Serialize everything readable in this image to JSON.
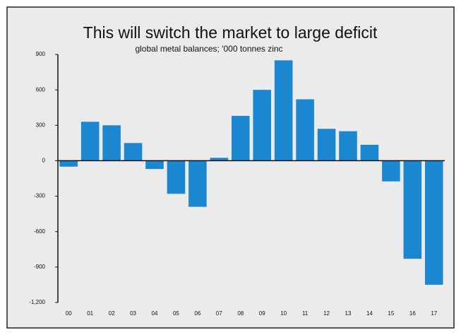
{
  "chart_data": {
    "type": "bar",
    "title": "This will switch the market to large deficit",
    "subtitle": "global metal balances; '000 tonnes zinc",
    "categories": [
      "00",
      "01",
      "02",
      "03",
      "04",
      "05",
      "06",
      "07",
      "08",
      "09",
      "10",
      "11",
      "12",
      "13",
      "14",
      "15",
      "16",
      "17"
    ],
    "values": [
      -50,
      330,
      300,
      150,
      -70,
      -280,
      -390,
      25,
      380,
      600,
      850,
      520,
      270,
      250,
      135,
      -175,
      -830,
      -1050
    ],
    "color": "#1b87d1",
    "ylim": [
      -1200,
      900
    ],
    "yticks": [
      {
        "value": -1200,
        "label": "-1,200"
      },
      -900,
      -600,
      -300,
      0,
      300,
      600,
      900
    ],
    "grid": false
  }
}
